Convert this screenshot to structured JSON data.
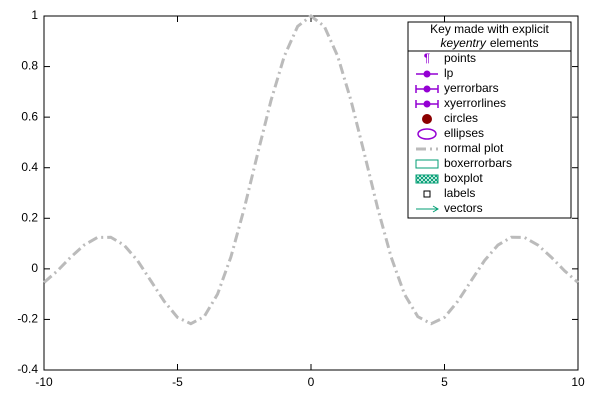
{
  "chart_data": {
    "type": "line",
    "x": [
      -10,
      -9.5,
      -9,
      -8.5,
      -8,
      -7.5,
      -7,
      -6.5,
      -6,
      -5.5,
      -5,
      -4.5,
      -4,
      -3.5,
      -3,
      -2.5,
      -2,
      -1.5,
      -1,
      -0.5,
      0,
      0.5,
      1,
      1.5,
      2,
      2.5,
      3,
      3.5,
      4,
      4.5,
      5,
      5.5,
      6,
      6.5,
      7,
      7.5,
      8,
      8.5,
      9,
      9.5,
      10
    ],
    "series": [
      {
        "color": "#bbbbbb",
        "values": [
          -0.054,
          -0.008,
          0.046,
          0.094,
          0.124,
          0.125,
          0.094,
          0.033,
          -0.047,
          -0.128,
          -0.192,
          -0.217,
          -0.189,
          -0.1,
          0.047,
          0.239,
          0.455,
          0.665,
          0.841,
          0.959,
          1,
          0.959,
          0.841,
          0.665,
          0.455,
          0.239,
          0.047,
          -0.1,
          -0.189,
          -0.217,
          -0.192,
          -0.128,
          -0.047,
          0.033,
          0.094,
          0.125,
          0.124,
          0.094,
          0.046,
          -0.008,
          -0.054
        ]
      }
    ],
    "xlim": [
      -10,
      10
    ],
    "xticks": [
      -10,
      -5,
      0,
      5,
      10
    ],
    "ylim": [
      -0.4,
      1
    ],
    "yticks": [
      -0.4,
      -0.2,
      0,
      0.2,
      0.4,
      0.6,
      0.8,
      1
    ],
    "key": {
      "title": "Key made with explicit",
      "title_italic": "keyentry",
      "title_rest": "elements",
      "entries": [
        {
          "label": "points",
          "marker": "symbol",
          "symbol": "¶",
          "color": "#9400d3"
        },
        {
          "label": "lp",
          "marker": "linepoint",
          "color": "#9400d3"
        },
        {
          "label": "yerrorbars",
          "marker": "errorbar",
          "color": "#9400d3"
        },
        {
          "label": "xyerrorlines",
          "marker": "errorbar",
          "color": "#9400d3"
        },
        {
          "label": "circles",
          "marker": "circle",
          "color": "#8b0000"
        },
        {
          "label": "ellipses",
          "marker": "ellipse",
          "color": "#9400d3"
        },
        {
          "label": "normal plot",
          "marker": "dashdot",
          "color": "#bbbbbb"
        },
        {
          "label": "boxerrorbars",
          "marker": "box",
          "color": "#009e73"
        },
        {
          "label": "boxplot",
          "marker": "hatched",
          "color": "#009e73"
        },
        {
          "label": "labels",
          "marker": "square",
          "color": "#000000"
        },
        {
          "label": "vectors",
          "marker": "arrow",
          "color": "#009e73"
        }
      ]
    }
  }
}
